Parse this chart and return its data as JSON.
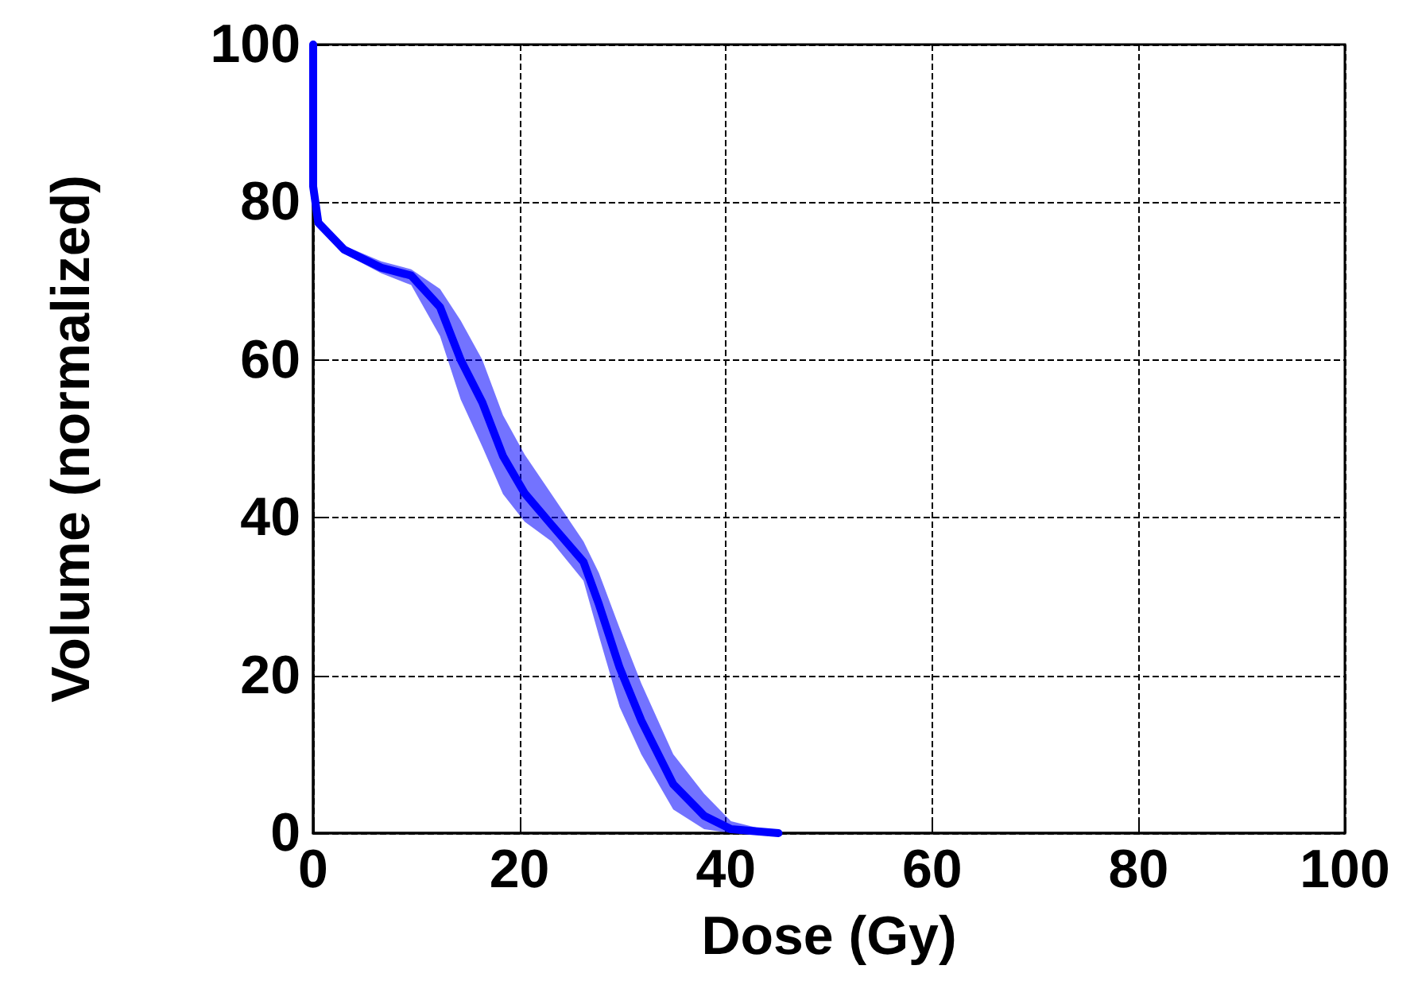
{
  "chart_data": {
    "type": "line",
    "xlabel": "Dose (Gy)",
    "ylabel": "Volume (normalized)",
    "xlim": [
      0,
      100
    ],
    "xticks": [
      0,
      20,
      40,
      60,
      80,
      100
    ],
    "ylim": [
      0,
      100
    ],
    "yticks": [
      0,
      20,
      40,
      60,
      80,
      100
    ],
    "grid": true,
    "line_style": "solid",
    "marker": "none",
    "series": [
      {
        "color": "#0000ff",
        "x": [
          0,
          0,
          0.5,
          3,
          6.6,
          9.5,
          12.3,
          14.3,
          16.4,
          18.4,
          20.5,
          23.1,
          26.2,
          27.7,
          29.7,
          31.8,
          34.9,
          37.9,
          40.5,
          45.1
        ],
        "values": [
          100,
          82,
          77.4,
          74,
          71.7,
          70.7,
          66.7,
          60,
          54.6,
          47.8,
          43.1,
          39.1,
          34.4,
          29,
          21,
          14.3,
          6.2,
          2.2,
          0.5,
          0
        ],
        "lower": [
          100,
          82,
          77,
          73.5,
          71,
          69.5,
          63,
          55,
          49,
          43,
          39.5,
          37,
          32,
          25,
          16,
          10,
          3,
          0.5,
          0,
          0
        ],
        "upper": [
          100,
          82,
          78,
          74.5,
          72.5,
          71.5,
          69,
          65,
          60,
          53,
          48,
          43,
          37,
          33,
          26,
          19,
          10,
          5,
          1.5,
          0
        ]
      }
    ]
  }
}
